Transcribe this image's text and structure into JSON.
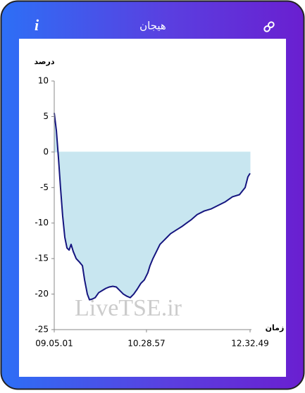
{
  "header": {
    "info": "i",
    "title": "هیجان"
  },
  "watermark": "LiveTSE.ir",
  "chart_data": {
    "type": "area",
    "y_label": "درصد",
    "x_label": "زمان",
    "x": [
      0,
      1.1,
      2.2,
      3.2,
      4.3,
      5.4,
      6.5,
      7.6,
      8.6,
      9.7,
      11.2,
      12.9,
      14.4,
      15.5,
      16.9,
      18.0,
      19.4,
      20.9,
      22.7,
      24.5,
      26.3,
      28.1,
      29.9,
      31.7,
      33.5,
      35.3,
      37.1,
      38.8,
      40.6,
      42.4,
      44.2,
      46.0,
      47.8,
      48.9,
      50.4,
      52.2,
      54.0,
      55.8,
      57.6,
      59.4,
      62.2,
      65.1,
      67.6,
      70.1,
      73.0,
      76.6,
      80.2,
      83.8,
      87.4,
      91.0,
      94.6,
      97.5,
      98.9,
      100
    ],
    "values": [
      5.5,
      3,
      -1,
      -5,
      -9,
      -12,
      -13.5,
      -13.8,
      -13,
      -14,
      -15,
      -15.5,
      -16,
      -18,
      -20,
      -20.8,
      -20.7,
      -20.5,
      -19.8,
      -19.5,
      -19.2,
      -19,
      -18.9,
      -19,
      -19.5,
      -20,
      -20.3,
      -20.5,
      -20,
      -19.3,
      -18.5,
      -18,
      -17,
      -16,
      -15,
      -14,
      -13,
      -12.5,
      -12,
      -11.5,
      -11,
      -10.5,
      -10,
      -9.5,
      -8.8,
      -8.3,
      -8,
      -7.5,
      -7,
      -6.3,
      -6,
      -5,
      -3.5,
      -3
    ],
    "color": "#15157f",
    "fill_color": "#c8e6f0",
    "xlim": [
      0,
      100
    ],
    "xticks": [
      {
        "value": 0,
        "label": "09.05.01"
      },
      {
        "value": 47.1,
        "label": "10.28.57"
      },
      {
        "value": 100,
        "label": "12.32.49"
      }
    ],
    "ylim": [
      -25,
      10
    ],
    "yticks": [
      10,
      5,
      0,
      -5,
      -10,
      -15,
      -20,
      -25
    ]
  }
}
